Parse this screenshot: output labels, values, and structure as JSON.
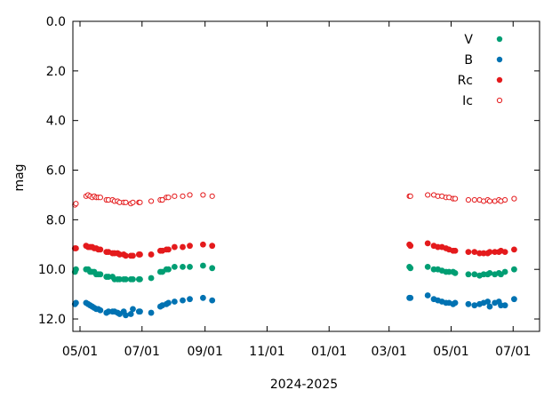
{
  "chart_data": {
    "type": "scatter",
    "title": "",
    "xlabel": "2024-2025",
    "ylabel": "mag",
    "y_inverted": true,
    "ylim": [
      0,
      12.5
    ],
    "yticks": [
      0,
      2,
      4,
      6,
      8,
      10,
      12
    ],
    "ytick_labels": [
      "0.0",
      "2.0",
      "4.0",
      "6.0",
      "8.0",
      "10.0",
      "12.0"
    ],
    "xlim": [
      "2024-04-24",
      "2025-07-27"
    ],
    "xticks": [
      "2024-05-01",
      "2024-07-01",
      "2024-09-01",
      "2024-11-01",
      "2025-01-01",
      "2025-03-01",
      "2025-05-01",
      "2025-07-01"
    ],
    "xtick_labels": [
      "05/01",
      "07/01",
      "09/01",
      "11/01",
      "01/01",
      "03/01",
      "05/01",
      "07/01"
    ],
    "legend_position": "top-right",
    "series": [
      {
        "name": "V",
        "color": "#009e73",
        "marker": "filled",
        "points": [
          [
            "2024-04-26",
            10.1
          ],
          [
            "2024-04-27",
            10.0
          ],
          [
            "2024-05-07",
            10.0
          ],
          [
            "2024-05-09",
            10.0
          ],
          [
            "2024-05-11",
            10.1
          ],
          [
            "2024-05-13",
            10.1
          ],
          [
            "2024-05-15",
            10.1
          ],
          [
            "2024-05-17",
            10.2
          ],
          [
            "2024-05-19",
            10.2
          ],
          [
            "2024-05-21",
            10.2
          ],
          [
            "2024-05-27",
            10.3
          ],
          [
            "2024-05-29",
            10.3
          ],
          [
            "2024-06-02",
            10.3
          ],
          [
            "2024-06-04",
            10.4
          ],
          [
            "2024-06-07",
            10.4
          ],
          [
            "2024-06-09",
            10.4
          ],
          [
            "2024-06-13",
            10.4
          ],
          [
            "2024-06-15",
            10.4
          ],
          [
            "2024-06-20",
            10.4
          ],
          [
            "2024-06-22",
            10.4
          ],
          [
            "2024-06-28",
            10.4
          ],
          [
            "2024-06-29",
            10.4
          ],
          [
            "2024-07-10",
            10.35
          ],
          [
            "2024-07-19",
            10.1
          ],
          [
            "2024-07-21",
            10.1
          ],
          [
            "2024-07-25",
            10.0
          ],
          [
            "2024-07-27",
            10.0
          ],
          [
            "2024-08-02",
            9.9
          ],
          [
            "2024-08-10",
            9.9
          ],
          [
            "2024-08-17",
            9.9
          ],
          [
            "2024-08-30",
            9.85
          ],
          [
            "2024-09-08",
            9.95
          ],
          [
            "2025-03-21",
            9.9
          ],
          [
            "2025-03-22",
            9.95
          ],
          [
            "2025-04-08",
            9.9
          ],
          [
            "2025-04-14",
            10.0
          ],
          [
            "2025-04-18",
            10.0
          ],
          [
            "2025-04-22",
            10.05
          ],
          [
            "2025-04-26",
            10.1
          ],
          [
            "2025-04-29",
            10.1
          ],
          [
            "2025-05-03",
            10.1
          ],
          [
            "2025-05-05",
            10.15
          ],
          [
            "2025-05-18",
            10.2
          ],
          [
            "2025-05-24",
            10.2
          ],
          [
            "2025-05-29",
            10.25
          ],
          [
            "2025-06-02",
            10.2
          ],
          [
            "2025-06-06",
            10.2
          ],
          [
            "2025-06-08",
            10.15
          ],
          [
            "2025-06-13",
            10.2
          ],
          [
            "2025-06-17",
            10.15
          ],
          [
            "2025-06-19",
            10.2
          ],
          [
            "2025-06-23",
            10.1
          ],
          [
            "2025-07-02",
            10.0
          ]
        ]
      },
      {
        "name": "B",
        "color": "#0072b2",
        "marker": "filled",
        "points": [
          [
            "2024-04-26",
            11.4
          ],
          [
            "2024-04-27",
            11.35
          ],
          [
            "2024-05-07",
            11.35
          ],
          [
            "2024-05-09",
            11.4
          ],
          [
            "2024-05-11",
            11.45
          ],
          [
            "2024-05-13",
            11.5
          ],
          [
            "2024-05-15",
            11.55
          ],
          [
            "2024-05-17",
            11.6
          ],
          [
            "2024-05-19",
            11.6
          ],
          [
            "2024-05-21",
            11.65
          ],
          [
            "2024-05-27",
            11.75
          ],
          [
            "2024-05-29",
            11.7
          ],
          [
            "2024-06-02",
            11.7
          ],
          [
            "2024-06-04",
            11.7
          ],
          [
            "2024-06-07",
            11.75
          ],
          [
            "2024-06-09",
            11.8
          ],
          [
            "2024-06-13",
            11.7
          ],
          [
            "2024-06-15",
            11.85
          ],
          [
            "2024-06-20",
            11.8
          ],
          [
            "2024-06-22",
            11.6
          ],
          [
            "2024-06-28",
            11.7
          ],
          [
            "2024-06-29",
            11.7
          ],
          [
            "2024-07-10",
            11.75
          ],
          [
            "2024-07-19",
            11.5
          ],
          [
            "2024-07-21",
            11.45
          ],
          [
            "2024-07-25",
            11.4
          ],
          [
            "2024-07-27",
            11.35
          ],
          [
            "2024-08-02",
            11.3
          ],
          [
            "2024-08-10",
            11.25
          ],
          [
            "2024-08-17",
            11.2
          ],
          [
            "2024-08-30",
            11.15
          ],
          [
            "2024-09-08",
            11.25
          ],
          [
            "2025-03-21",
            11.15
          ],
          [
            "2025-03-22",
            11.15
          ],
          [
            "2025-04-08",
            11.05
          ],
          [
            "2025-04-14",
            11.2
          ],
          [
            "2025-04-18",
            11.25
          ],
          [
            "2025-04-22",
            11.3
          ],
          [
            "2025-04-26",
            11.35
          ],
          [
            "2025-04-29",
            11.35
          ],
          [
            "2025-05-03",
            11.4
          ],
          [
            "2025-05-05",
            11.35
          ],
          [
            "2025-05-18",
            11.4
          ],
          [
            "2025-05-24",
            11.45
          ],
          [
            "2025-05-29",
            11.4
          ],
          [
            "2025-06-02",
            11.35
          ],
          [
            "2025-06-06",
            11.3
          ],
          [
            "2025-06-08",
            11.5
          ],
          [
            "2025-06-13",
            11.35
          ],
          [
            "2025-06-17",
            11.3
          ],
          [
            "2025-06-19",
            11.45
          ],
          [
            "2025-06-23",
            11.45
          ],
          [
            "2025-07-02",
            11.2
          ]
        ]
      },
      {
        "name": "Rc",
        "color": "#e41a1c",
        "marker": "filled",
        "points": [
          [
            "2024-04-26",
            9.15
          ],
          [
            "2024-04-27",
            9.15
          ],
          [
            "2024-05-07",
            9.05
          ],
          [
            "2024-05-09",
            9.1
          ],
          [
            "2024-05-11",
            9.1
          ],
          [
            "2024-05-13",
            9.1
          ],
          [
            "2024-05-15",
            9.15
          ],
          [
            "2024-05-17",
            9.15
          ],
          [
            "2024-05-19",
            9.2
          ],
          [
            "2024-05-21",
            9.2
          ],
          [
            "2024-05-27",
            9.3
          ],
          [
            "2024-05-29",
            9.3
          ],
          [
            "2024-06-02",
            9.35
          ],
          [
            "2024-06-04",
            9.35
          ],
          [
            "2024-06-07",
            9.35
          ],
          [
            "2024-06-09",
            9.4
          ],
          [
            "2024-06-13",
            9.4
          ],
          [
            "2024-06-15",
            9.45
          ],
          [
            "2024-06-20",
            9.45
          ],
          [
            "2024-06-22",
            9.45
          ],
          [
            "2024-06-28",
            9.4
          ],
          [
            "2024-06-29",
            9.4
          ],
          [
            "2024-07-10",
            9.4
          ],
          [
            "2024-07-19",
            9.25
          ],
          [
            "2024-07-21",
            9.25
          ],
          [
            "2024-07-25",
            9.2
          ],
          [
            "2024-07-27",
            9.2
          ],
          [
            "2024-08-02",
            9.1
          ],
          [
            "2024-08-10",
            9.1
          ],
          [
            "2024-08-17",
            9.05
          ],
          [
            "2024-08-30",
            9.0
          ],
          [
            "2024-09-08",
            9.05
          ],
          [
            "2025-03-21",
            9.0
          ],
          [
            "2025-03-22",
            9.05
          ],
          [
            "2025-04-08",
            8.95
          ],
          [
            "2025-04-14",
            9.05
          ],
          [
            "2025-04-18",
            9.1
          ],
          [
            "2025-04-22",
            9.1
          ],
          [
            "2025-04-26",
            9.15
          ],
          [
            "2025-04-29",
            9.2
          ],
          [
            "2025-05-03",
            9.25
          ],
          [
            "2025-05-05",
            9.25
          ],
          [
            "2025-05-18",
            9.3
          ],
          [
            "2025-05-24",
            9.3
          ],
          [
            "2025-05-29",
            9.35
          ],
          [
            "2025-06-02",
            9.35
          ],
          [
            "2025-06-06",
            9.35
          ],
          [
            "2025-06-08",
            9.3
          ],
          [
            "2025-06-13",
            9.3
          ],
          [
            "2025-06-17",
            9.3
          ],
          [
            "2025-06-19",
            9.25
          ],
          [
            "2025-06-23",
            9.3
          ],
          [
            "2025-07-02",
            9.2
          ]
        ]
      },
      {
        "name": "Ic",
        "color": "#e41a1c",
        "marker": "open",
        "points": [
          [
            "2024-04-26",
            7.4
          ],
          [
            "2024-04-27",
            7.35
          ],
          [
            "2024-05-07",
            7.05
          ],
          [
            "2024-05-09",
            7.0
          ],
          [
            "2024-05-11",
            7.05
          ],
          [
            "2024-05-13",
            7.1
          ],
          [
            "2024-05-15",
            7.05
          ],
          [
            "2024-05-17",
            7.1
          ],
          [
            "2024-05-19",
            7.1
          ],
          [
            "2024-05-21",
            7.1
          ],
          [
            "2024-05-27",
            7.2
          ],
          [
            "2024-05-29",
            7.2
          ],
          [
            "2024-06-02",
            7.2
          ],
          [
            "2024-06-04",
            7.25
          ],
          [
            "2024-06-07",
            7.25
          ],
          [
            "2024-06-09",
            7.3
          ],
          [
            "2024-06-13",
            7.3
          ],
          [
            "2024-06-15",
            7.3
          ],
          [
            "2024-06-20",
            7.35
          ],
          [
            "2024-06-22",
            7.3
          ],
          [
            "2024-06-28",
            7.3
          ],
          [
            "2024-06-29",
            7.3
          ],
          [
            "2024-07-10",
            7.25
          ],
          [
            "2024-07-19",
            7.2
          ],
          [
            "2024-07-21",
            7.2
          ],
          [
            "2024-07-25",
            7.1
          ],
          [
            "2024-07-27",
            7.1
          ],
          [
            "2024-08-02",
            7.05
          ],
          [
            "2024-08-10",
            7.05
          ],
          [
            "2024-08-17",
            7.0
          ],
          [
            "2024-08-30",
            7.0
          ],
          [
            "2024-09-08",
            7.05
          ],
          [
            "2025-03-21",
            7.05
          ],
          [
            "2025-03-22",
            7.05
          ],
          [
            "2025-04-08",
            7.0
          ],
          [
            "2025-04-14",
            7.0
          ],
          [
            "2025-04-18",
            7.05
          ],
          [
            "2025-04-22",
            7.05
          ],
          [
            "2025-04-26",
            7.1
          ],
          [
            "2025-04-29",
            7.1
          ],
          [
            "2025-05-03",
            7.15
          ],
          [
            "2025-05-05",
            7.15
          ],
          [
            "2025-05-18",
            7.2
          ],
          [
            "2025-05-24",
            7.2
          ],
          [
            "2025-05-29",
            7.2
          ],
          [
            "2025-06-02",
            7.25
          ],
          [
            "2025-06-06",
            7.2
          ],
          [
            "2025-06-08",
            7.25
          ],
          [
            "2025-06-13",
            7.25
          ],
          [
            "2025-06-17",
            7.2
          ],
          [
            "2025-06-19",
            7.25
          ],
          [
            "2025-06-23",
            7.2
          ],
          [
            "2025-07-02",
            7.15
          ]
        ]
      }
    ]
  }
}
